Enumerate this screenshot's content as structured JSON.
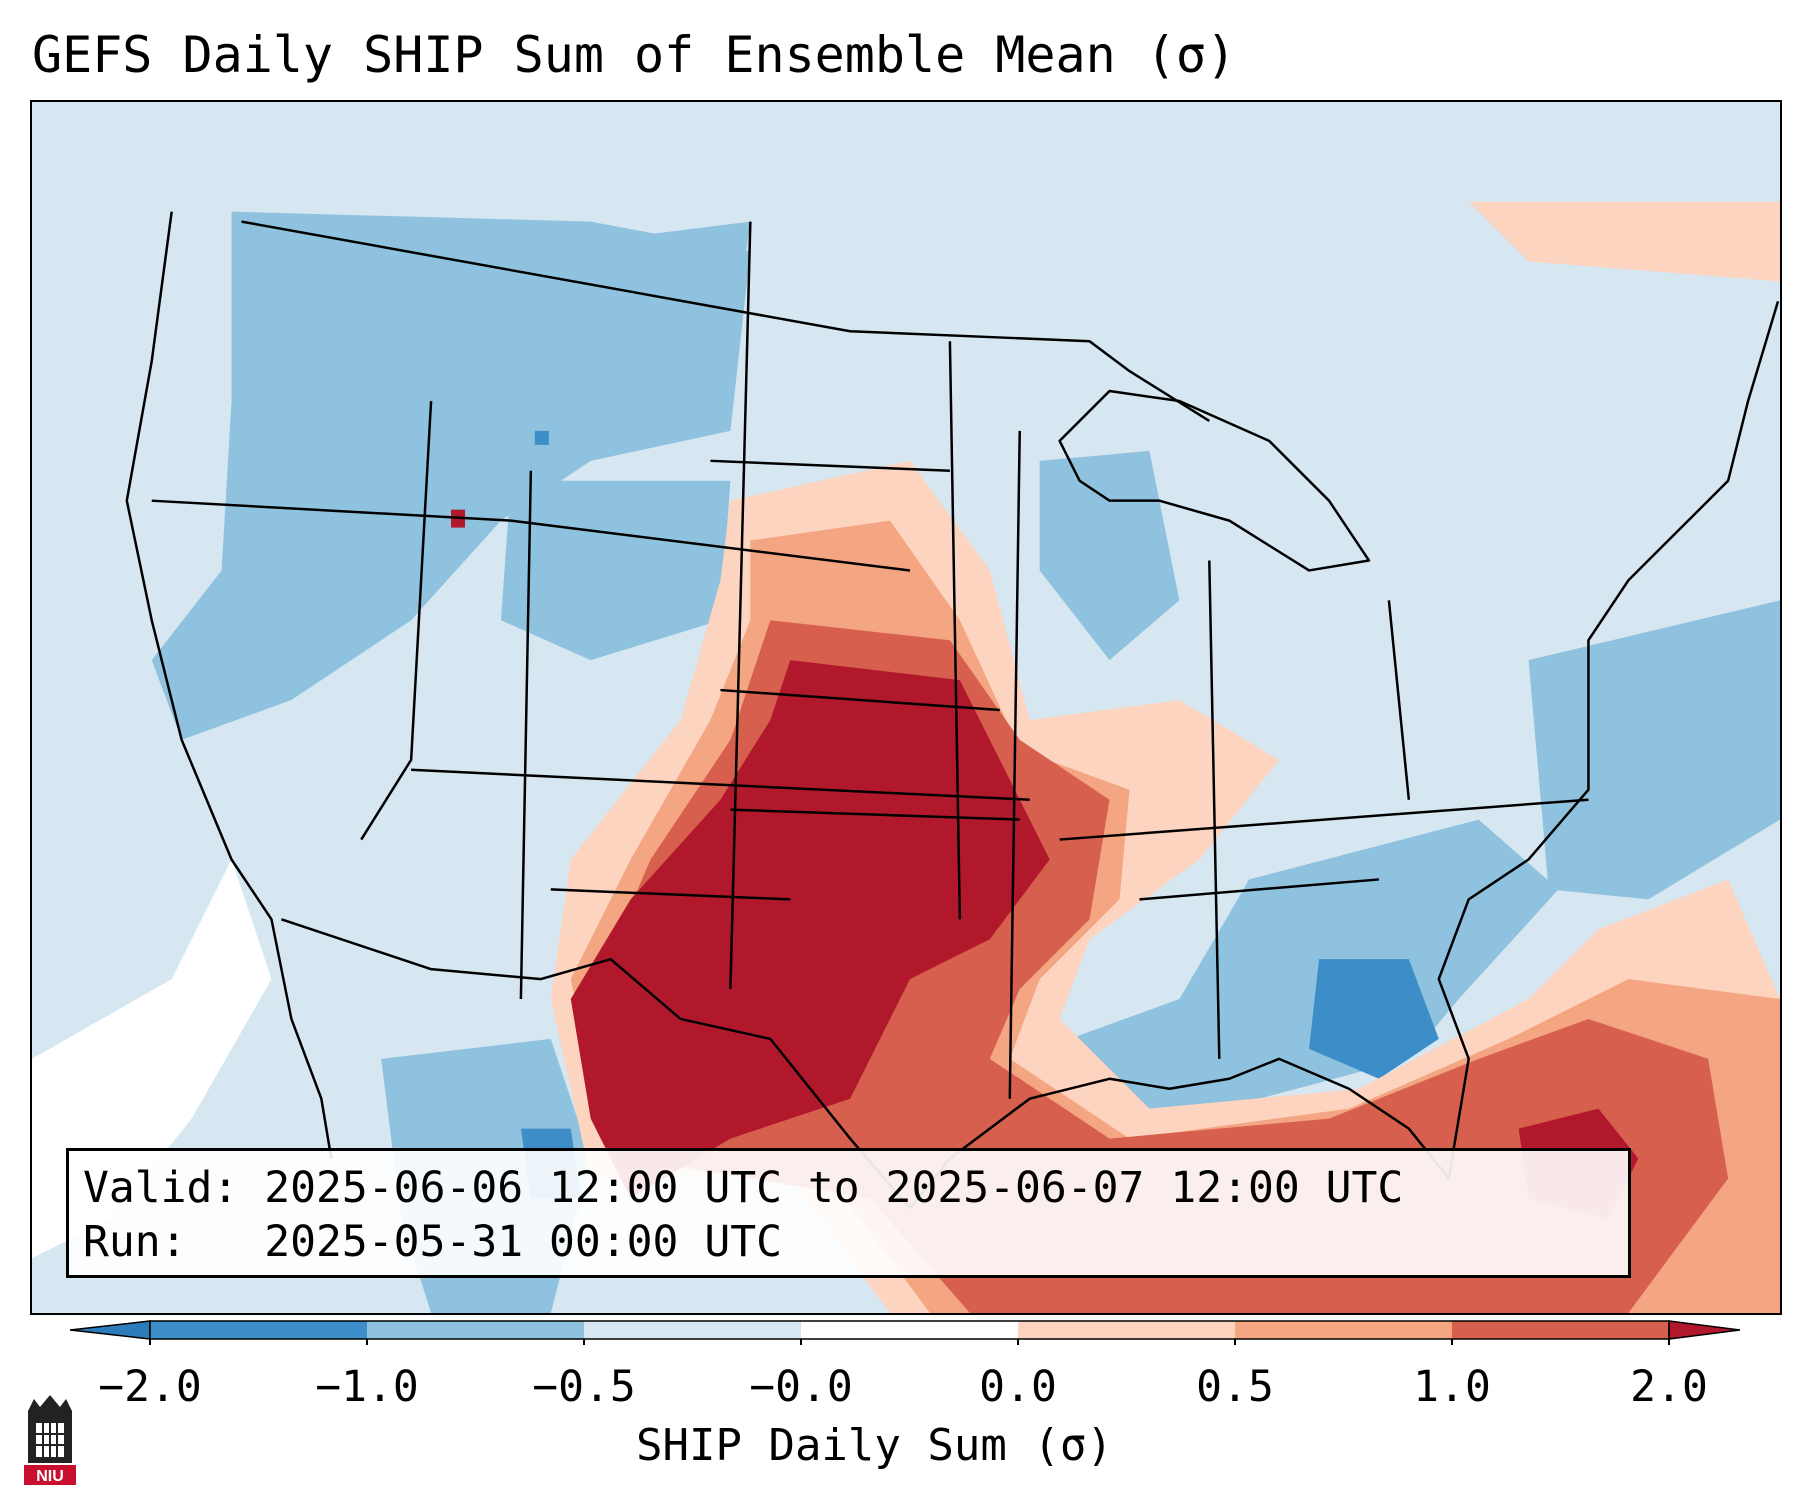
{
  "title": "GEFS Daily SHIP Sum of Ensemble Mean (σ)",
  "info": {
    "valid_label": "Valid:",
    "valid_value": "2025-06-06 12:00 UTC to 2025-06-07 12:00 UTC",
    "run_label": "Run:  ",
    "run_value": "2025-05-31 00:00 UTC"
  },
  "colorbar": {
    "label": "SHIP Daily Sum (σ)",
    "ticks": [
      "−2.0",
      "−1.0",
      "−0.5",
      "−0.0",
      "0.0",
      "0.5",
      "1.0",
      "2.0"
    ],
    "colors": [
      "#2c7bbb",
      "#3d8ec8",
      "#8fc2de",
      "#d6e7f2",
      "#ffffff",
      "#fcd4bf",
      "#f4a582",
      "#d6604d",
      "#b2182b"
    ]
  },
  "map": {
    "background_color": "#d6e7f2",
    "regions": [
      {
        "name": "southern-plains-max",
        "level": "2.0"
      },
      {
        "name": "texas-core",
        "level": "2.0"
      },
      {
        "name": "florida-straits",
        "level": "1.0"
      },
      {
        "name": "southeast-negative",
        "level": "-1.0"
      },
      {
        "name": "northern-rockies-negative",
        "level": "-0.5"
      }
    ]
  },
  "logo": {
    "text": "NIU"
  }
}
